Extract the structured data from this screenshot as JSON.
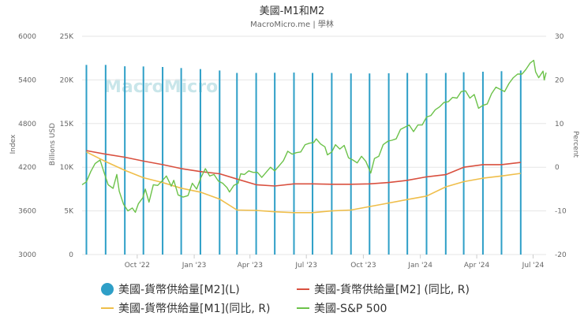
{
  "chart_data": {
    "type": "line",
    "title": "美國-M1和M2",
    "subtitle": "MacroMicro.me | 學林",
    "watermark": "MacroMicro",
    "axes": {
      "index": {
        "label": "Index",
        "ticks": [
          "6000",
          "5400",
          "4800",
          "4200",
          "3600",
          "3000"
        ],
        "range": [
          3000,
          6000
        ]
      },
      "billions": {
        "label": "Billions USD",
        "ticks": [
          "25K",
          "20K",
          "15K",
          "10K",
          "5K",
          "0"
        ],
        "range": [
          0,
          25000
        ]
      },
      "percent": {
        "label": "Percent",
        "ticks": [
          "30",
          "20",
          "10",
          "0",
          "-10",
          "-20"
        ],
        "range": [
          -20,
          30
        ]
      },
      "x_ticks": [
        {
          "label": "Oct '22",
          "date": "2022-10-15"
        },
        {
          "label": "Jan '23",
          "date": "2023-01-15"
        },
        {
          "label": "Apr '23",
          "date": "2023-04-15"
        },
        {
          "label": "Jul '23",
          "date": "2023-07-15"
        },
        {
          "label": "Oct '23",
          "date": "2023-10-15"
        },
        {
          "label": "Jan '24",
          "date": "2024-01-15"
        },
        {
          "label": "Apr '24",
          "date": "2024-04-15"
        },
        {
          "label": "Jul '24",
          "date": "2024-07-15"
        }
      ],
      "x_range": [
        "2022-07-18",
        "2024-08-05"
      ]
    },
    "series": [
      {
        "name": "美國-貨幣供給量[M2](L)",
        "type": "bar",
        "axis": "billions",
        "color": "#2e9fc7",
        "points": [
          [
            "2022-07-25",
            21720
          ],
          [
            "2022-08-25",
            21720
          ],
          [
            "2022-09-25",
            21560
          ],
          [
            "2022-10-25",
            21540
          ],
          [
            "2022-11-25",
            21480
          ],
          [
            "2022-12-25",
            21360
          ],
          [
            "2023-01-25",
            21240
          ],
          [
            "2023-02-25",
            21080
          ],
          [
            "2023-03-25",
            20800
          ],
          [
            "2023-04-25",
            20800
          ],
          [
            "2023-05-25",
            20820
          ],
          [
            "2023-06-25",
            20840
          ],
          [
            "2023-07-25",
            20800
          ],
          [
            "2023-08-25",
            20800
          ],
          [
            "2023-09-25",
            20740
          ],
          [
            "2023-10-25",
            20740
          ],
          [
            "2023-11-25",
            20760
          ],
          [
            "2023-12-25",
            20800
          ],
          [
            "2024-01-25",
            20760
          ],
          [
            "2024-02-25",
            20800
          ],
          [
            "2024-03-25",
            20880
          ],
          [
            "2024-04-25",
            20940
          ],
          [
            "2024-05-25",
            21000
          ],
          [
            "2024-06-25",
            21080
          ]
        ]
      },
      {
        "name": "美國-貨幣供給量[M2] (同比, R)",
        "type": "line",
        "axis": "percent",
        "color": "#d9503f",
        "points": [
          [
            "2022-07-25",
            3.8
          ],
          [
            "2022-08-25",
            3.0
          ],
          [
            "2022-09-25",
            2.3
          ],
          [
            "2022-10-25",
            1.4
          ],
          [
            "2022-11-25",
            0.6
          ],
          [
            "2022-12-25",
            -0.3
          ],
          [
            "2023-01-25",
            -1.0
          ],
          [
            "2023-02-25",
            -1.5
          ],
          [
            "2023-03-25",
            -2.7
          ],
          [
            "2023-04-25",
            -4.0
          ],
          [
            "2023-05-25",
            -4.3
          ],
          [
            "2023-06-25",
            -3.8
          ],
          [
            "2023-07-25",
            -3.8
          ],
          [
            "2023-08-25",
            -3.9
          ],
          [
            "2023-09-25",
            -3.9
          ],
          [
            "2023-10-25",
            -3.8
          ],
          [
            "2023-11-25",
            -3.5
          ],
          [
            "2023-12-25",
            -3.0
          ],
          [
            "2024-01-25",
            -2.2
          ],
          [
            "2024-02-25",
            -1.7
          ],
          [
            "2024-03-25",
            0.0
          ],
          [
            "2024-04-25",
            0.6
          ],
          [
            "2024-05-25",
            0.6
          ],
          [
            "2024-06-25",
            1.1
          ]
        ]
      },
      {
        "name": "美國-貨幣供給量[M1](同比, R)",
        "type": "line",
        "axis": "percent",
        "color": "#efbe4a",
        "points": [
          [
            "2022-07-25",
            3.5
          ],
          [
            "2022-08-25",
            1.3
          ],
          [
            "2022-09-25",
            -0.7
          ],
          [
            "2022-10-25",
            -2.4
          ],
          [
            "2022-11-25",
            -3.5
          ],
          [
            "2022-12-25",
            -4.8
          ],
          [
            "2023-01-25",
            -5.7
          ],
          [
            "2023-02-25",
            -7.3
          ],
          [
            "2023-03-25",
            -9.8
          ],
          [
            "2023-04-25",
            -9.9
          ],
          [
            "2023-05-25",
            -10.2
          ],
          [
            "2023-06-25",
            -10.4
          ],
          [
            "2023-07-25",
            -10.4
          ],
          [
            "2023-08-25",
            -10.0
          ],
          [
            "2023-09-25",
            -9.8
          ],
          [
            "2023-10-25",
            -9.0
          ],
          [
            "2023-11-25",
            -8.2
          ],
          [
            "2023-12-25",
            -7.4
          ],
          [
            "2024-01-25",
            -6.6
          ],
          [
            "2024-02-25",
            -4.5
          ],
          [
            "2024-03-25",
            -3.3
          ],
          [
            "2024-04-25",
            -2.5
          ],
          [
            "2024-05-25",
            -2.0
          ],
          [
            "2024-06-25",
            -1.4
          ]
        ]
      },
      {
        "name": "美國-S&P 500",
        "type": "line",
        "axis": "index",
        "color": "#6cc24a",
        "points": [
          [
            "2022-07-18",
            3960
          ],
          [
            "2022-07-25",
            4000
          ],
          [
            "2022-08-01",
            4140
          ],
          [
            "2022-08-08",
            4250
          ],
          [
            "2022-08-16",
            4300
          ],
          [
            "2022-08-22",
            4140
          ],
          [
            "2022-08-29",
            3960
          ],
          [
            "2022-09-06",
            3910
          ],
          [
            "2022-09-12",
            4100
          ],
          [
            "2022-09-16",
            3870
          ],
          [
            "2022-09-23",
            3690
          ],
          [
            "2022-09-30",
            3600
          ],
          [
            "2022-10-07",
            3640
          ],
          [
            "2022-10-12",
            3580
          ],
          [
            "2022-10-17",
            3700
          ],
          [
            "2022-10-24",
            3780
          ],
          [
            "2022-10-28",
            3900
          ],
          [
            "2022-11-03",
            3720
          ],
          [
            "2022-11-10",
            3960
          ],
          [
            "2022-11-17",
            3950
          ],
          [
            "2022-11-25",
            4020
          ],
          [
            "2022-12-01",
            4080
          ],
          [
            "2022-12-09",
            3940
          ],
          [
            "2022-12-13",
            4020
          ],
          [
            "2022-12-20",
            3820
          ],
          [
            "2022-12-28",
            3790
          ],
          [
            "2023-01-05",
            3810
          ],
          [
            "2023-01-12",
            3980
          ],
          [
            "2023-01-19",
            3900
          ],
          [
            "2023-01-26",
            4060
          ],
          [
            "2023-02-02",
            4180
          ],
          [
            "2023-02-09",
            4080
          ],
          [
            "2023-02-16",
            4100
          ],
          [
            "2023-02-23",
            4010
          ],
          [
            "2023-03-02",
            3980
          ],
          [
            "2023-03-09",
            3920
          ],
          [
            "2023-03-13",
            3860
          ],
          [
            "2023-03-20",
            3950
          ],
          [
            "2023-03-27",
            3980
          ],
          [
            "2023-03-31",
            4110
          ],
          [
            "2023-04-06",
            4100
          ],
          [
            "2023-04-13",
            4150
          ],
          [
            "2023-04-20",
            4130
          ],
          [
            "2023-04-27",
            4130
          ],
          [
            "2023-05-04",
            4060
          ],
          [
            "2023-05-11",
            4130
          ],
          [
            "2023-05-18",
            4200
          ],
          [
            "2023-05-25",
            4150
          ],
          [
            "2023-06-01",
            4220
          ],
          [
            "2023-06-08",
            4290
          ],
          [
            "2023-06-15",
            4420
          ],
          [
            "2023-06-22",
            4380
          ],
          [
            "2023-06-29",
            4400
          ],
          [
            "2023-07-06",
            4410
          ],
          [
            "2023-07-13",
            4510
          ],
          [
            "2023-07-20",
            4530
          ],
          [
            "2023-07-27",
            4540
          ],
          [
            "2023-07-31",
            4590
          ],
          [
            "2023-08-07",
            4520
          ],
          [
            "2023-08-14",
            4480
          ],
          [
            "2023-08-18",
            4370
          ],
          [
            "2023-08-25",
            4410
          ],
          [
            "2023-08-31",
            4510
          ],
          [
            "2023-09-07",
            4450
          ],
          [
            "2023-09-14",
            4500
          ],
          [
            "2023-09-21",
            4330
          ],
          [
            "2023-09-28",
            4300
          ],
          [
            "2023-10-05",
            4260
          ],
          [
            "2023-10-12",
            4350
          ],
          [
            "2023-10-19",
            4280
          ],
          [
            "2023-10-27",
            4120
          ],
          [
            "2023-11-02",
            4320
          ],
          [
            "2023-11-09",
            4350
          ],
          [
            "2023-11-16",
            4510
          ],
          [
            "2023-11-24",
            4560
          ],
          [
            "2023-11-30",
            4570
          ],
          [
            "2023-12-07",
            4590
          ],
          [
            "2023-12-14",
            4720
          ],
          [
            "2023-12-21",
            4750
          ],
          [
            "2023-12-28",
            4780
          ],
          [
            "2024-01-04",
            4690
          ],
          [
            "2024-01-11",
            4780
          ],
          [
            "2024-01-18",
            4780
          ],
          [
            "2024-01-25",
            4890
          ],
          [
            "2024-02-01",
            4910
          ],
          [
            "2024-02-08",
            4990
          ],
          [
            "2024-02-15",
            5030
          ],
          [
            "2024-02-22",
            5090
          ],
          [
            "2024-02-29",
            5100
          ],
          [
            "2024-03-07",
            5160
          ],
          [
            "2024-03-14",
            5150
          ],
          [
            "2024-03-21",
            5240
          ],
          [
            "2024-03-28",
            5250
          ],
          [
            "2024-04-04",
            5150
          ],
          [
            "2024-04-11",
            5200
          ],
          [
            "2024-04-18",
            5010
          ],
          [
            "2024-04-25",
            5050
          ],
          [
            "2024-05-02",
            5070
          ],
          [
            "2024-05-09",
            5210
          ],
          [
            "2024-05-16",
            5300
          ],
          [
            "2024-05-23",
            5270
          ],
          [
            "2024-05-30",
            5240
          ],
          [
            "2024-06-06",
            5350
          ],
          [
            "2024-06-13",
            5430
          ],
          [
            "2024-06-20",
            5480
          ],
          [
            "2024-06-27",
            5480
          ],
          [
            "2024-07-03",
            5540
          ],
          [
            "2024-07-10",
            5630
          ],
          [
            "2024-07-16",
            5670
          ],
          [
            "2024-07-19",
            5510
          ],
          [
            "2024-07-24",
            5430
          ],
          [
            "2024-07-31",
            5520
          ],
          [
            "2024-08-02",
            5400
          ],
          [
            "2024-08-05",
            5500
          ]
        ]
      }
    ],
    "legend": {
      "position": "bottom",
      "entries": [
        {
          "label": "美國-貨幣供給量[M2](L)",
          "marker": "circle",
          "color": "#2e9fc7"
        },
        {
          "label": "美國-貨幣供給量[M2] (同比, R)",
          "marker": "line",
          "color": "#d9503f"
        },
        {
          "label": "美國-貨幣供給量[M1](同比, R)",
          "marker": "line",
          "color": "#efbe4a"
        },
        {
          "label": "美國-S&P 500",
          "marker": "line",
          "color": "#6cc24a"
        }
      ]
    },
    "grid": true
  }
}
